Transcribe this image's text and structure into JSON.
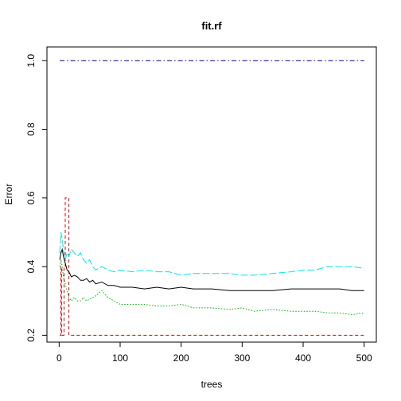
{
  "chart_data": {
    "type": "line",
    "title": "fit.rf",
    "xlabel": "trees",
    "ylabel": "Error",
    "xlim": [
      -20,
      520
    ],
    "ylim": [
      0.18,
      1.04
    ],
    "xticks": [
      0,
      100,
      200,
      300,
      400,
      500
    ],
    "yticks": [
      0.2,
      0.4,
      0.6,
      0.8,
      1.0
    ],
    "xtick_labels": [
      "0",
      "100",
      "200",
      "300",
      "400",
      "500"
    ],
    "ytick_labels": [
      "0.2",
      "0.4",
      "0.6",
      "0.8",
      "1.0"
    ],
    "grid": false,
    "legend": "none",
    "series": [
      {
        "color": "#00008b",
        "dash": "dashdot",
        "x": [
          1,
          500
        ],
        "y": [
          1.0,
          1.0
        ]
      },
      {
        "color": "#e00000",
        "dash": "dashed",
        "step": true,
        "x": [
          1,
          3,
          4,
          6,
          8,
          9,
          10,
          12,
          16,
          18,
          20,
          22,
          500
        ],
        "y": [
          0.2,
          0.4,
          0.2,
          0.2,
          0.4,
          0.4,
          0.6,
          0.6,
          0.2,
          0.2,
          0.2,
          0.2,
          0.2
        ]
      },
      {
        "color": "#00e5e5",
        "dash": "longdash",
        "x": [
          1,
          3,
          5,
          7,
          10,
          13,
          16,
          20,
          25,
          30,
          35,
          40,
          45,
          50,
          55,
          60,
          70,
          80,
          90,
          100,
          120,
          140,
          160,
          180,
          200,
          220,
          250,
          280,
          300,
          320,
          350,
          380,
          400,
          420,
          440,
          460,
          480,
          500
        ],
        "y": [
          0.44,
          0.5,
          0.48,
          0.45,
          0.42,
          0.44,
          0.43,
          0.45,
          0.44,
          0.43,
          0.44,
          0.42,
          0.41,
          0.42,
          0.4,
          0.39,
          0.4,
          0.39,
          0.385,
          0.39,
          0.385,
          0.39,
          0.385,
          0.385,
          0.375,
          0.38,
          0.38,
          0.38,
          0.375,
          0.375,
          0.38,
          0.385,
          0.39,
          0.39,
          0.4,
          0.4,
          0.4,
          0.395
        ]
      },
      {
        "color": "#000000",
        "dash": "solid",
        "x": [
          1,
          3,
          5,
          7,
          10,
          13,
          16,
          20,
          25,
          30,
          35,
          40,
          45,
          50,
          55,
          60,
          70,
          80,
          90,
          100,
          120,
          140,
          160,
          180,
          200,
          220,
          250,
          280,
          300,
          320,
          350,
          380,
          400,
          420,
          440,
          460,
          480,
          500
        ],
        "y": [
          0.42,
          0.44,
          0.45,
          0.43,
          0.41,
          0.39,
          0.385,
          0.37,
          0.375,
          0.37,
          0.36,
          0.36,
          0.365,
          0.355,
          0.36,
          0.35,
          0.355,
          0.345,
          0.345,
          0.34,
          0.34,
          0.335,
          0.34,
          0.335,
          0.34,
          0.335,
          0.335,
          0.33,
          0.33,
          0.33,
          0.33,
          0.335,
          0.335,
          0.335,
          0.335,
          0.335,
          0.33,
          0.33
        ]
      },
      {
        "color": "#00b000",
        "dash": "dotted",
        "x": [
          1,
          3,
          5,
          7,
          10,
          13,
          16,
          20,
          25,
          30,
          35,
          40,
          45,
          50,
          55,
          60,
          70,
          75,
          80,
          90,
          100,
          120,
          140,
          160,
          180,
          200,
          220,
          250,
          280,
          300,
          320,
          350,
          380,
          400,
          420,
          440,
          460,
          480,
          500
        ],
        "y": [
          0.4,
          0.42,
          0.4,
          0.37,
          0.35,
          0.33,
          0.31,
          0.3,
          0.31,
          0.3,
          0.3,
          0.31,
          0.3,
          0.305,
          0.31,
          0.315,
          0.33,
          0.32,
          0.31,
          0.3,
          0.29,
          0.29,
          0.29,
          0.285,
          0.285,
          0.29,
          0.28,
          0.28,
          0.275,
          0.28,
          0.27,
          0.275,
          0.27,
          0.27,
          0.27,
          0.265,
          0.265,
          0.26,
          0.265
        ]
      }
    ]
  }
}
